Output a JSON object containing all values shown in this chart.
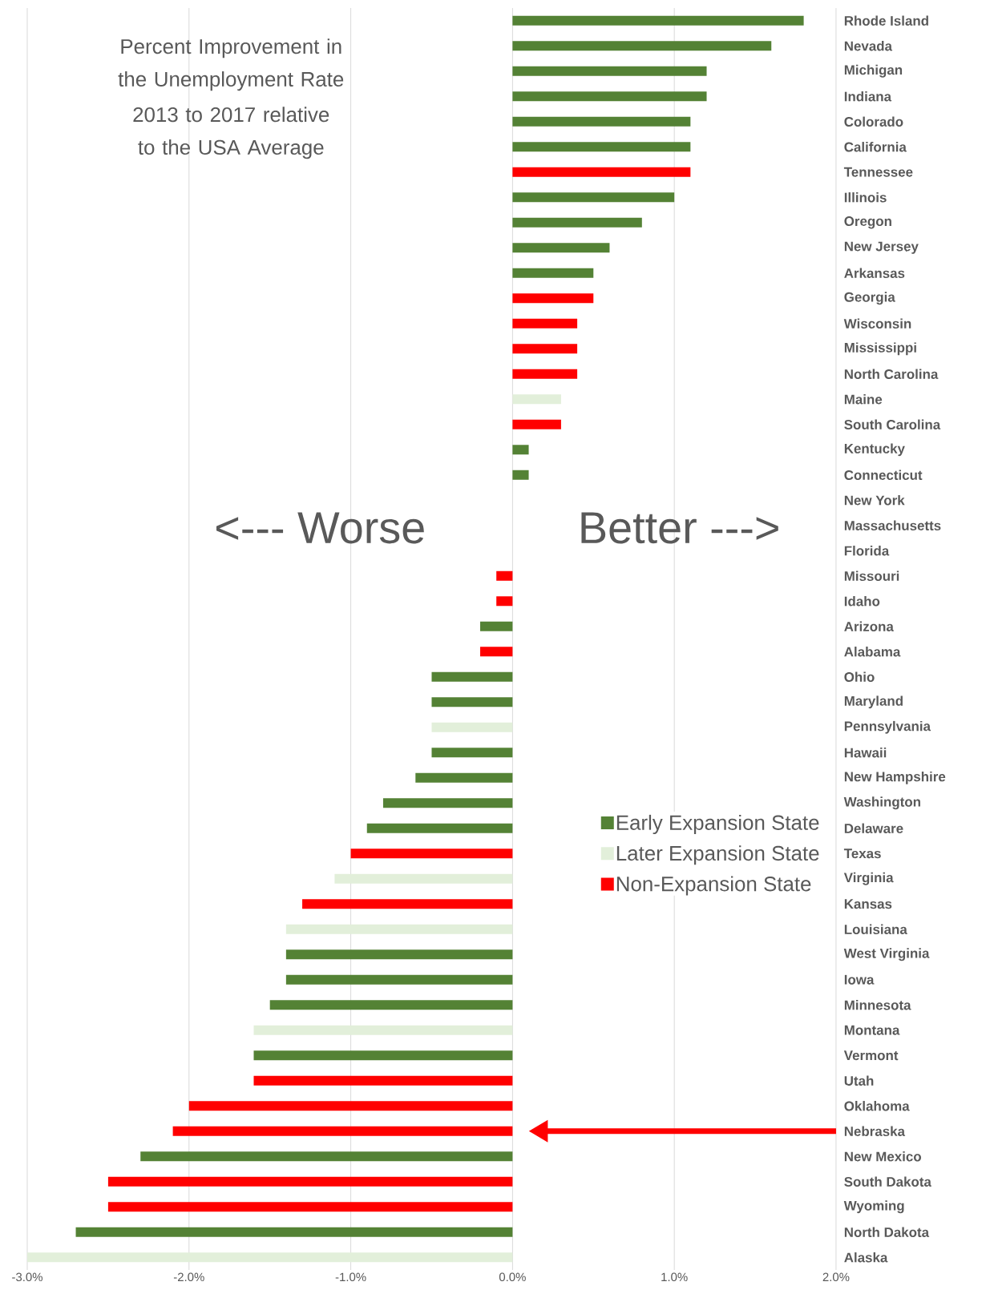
{
  "chart_data": {
    "type": "bar",
    "orientation": "horizontal",
    "title": "Percent Improvement in the Unemployment Rate",
    "subtitle": "2013 to 2017 relative to the USA Average",
    "categories": [
      "Rhode Island",
      "Nevada",
      "Michigan",
      "Indiana",
      "Colorado",
      "California",
      "Tennessee",
      "Illinois",
      "Oregon",
      "New Jersey",
      "Arkansas",
      "Georgia",
      "Wisconsin",
      "Mississippi",
      "North Carolina",
      "Maine",
      "South Carolina",
      "Kentucky",
      "Connecticut",
      "New York",
      "Massachusetts",
      "Florida",
      "Missouri",
      "Idaho",
      "Arizona",
      "Alabama",
      "Ohio",
      "Maryland",
      "Pennsylvania",
      "Hawaii",
      "New Hampshire",
      "Washington",
      "Delaware",
      "Texas",
      "Virginia",
      "Kansas",
      "Louisiana",
      "West Virginia",
      "Iowa",
      "Minnesota",
      "Montana",
      "Vermont",
      "Utah",
      "Oklahoma",
      "Nebraska",
      "New Mexico",
      "South Dakota",
      "Wyoming",
      "North Dakota",
      "Alaska"
    ],
    "series": [
      {
        "name": "Early Expansion State",
        "color": "#548235",
        "values": [
          1.8,
          1.6,
          1.2,
          1.2,
          1.1,
          1.1,
          null,
          1.0,
          0.8,
          0.6,
          0.5,
          null,
          null,
          null,
          null,
          null,
          null,
          0.1,
          0.1,
          0,
          0,
          null,
          null,
          null,
          -0.2,
          null,
          -0.5,
          -0.5,
          null,
          -0.5,
          -0.6,
          -0.8,
          -0.9,
          null,
          null,
          null,
          null,
          -1.4,
          -1.4,
          -1.5,
          null,
          -1.6,
          null,
          null,
          null,
          -2.3,
          null,
          null,
          -2.7,
          null
        ]
      },
      {
        "name": "Later Expansion State",
        "color": "#e2efda",
        "values": [
          null,
          null,
          null,
          null,
          null,
          null,
          null,
          null,
          null,
          null,
          null,
          null,
          null,
          null,
          null,
          0.3,
          null,
          null,
          null,
          null,
          null,
          null,
          null,
          null,
          null,
          null,
          null,
          null,
          -0.5,
          null,
          null,
          null,
          null,
          null,
          -1.1,
          null,
          -1.4,
          null,
          null,
          null,
          -1.6,
          null,
          null,
          null,
          null,
          null,
          null,
          null,
          null,
          -3.0
        ]
      },
      {
        "name": "Non-Expansion State",
        "color": "#ff0000",
        "values": [
          null,
          null,
          null,
          null,
          null,
          null,
          1.1,
          null,
          null,
          null,
          null,
          0.5,
          0.4,
          0.4,
          0.4,
          null,
          0.3,
          null,
          null,
          null,
          null,
          0,
          -0.1,
          -0.1,
          null,
          -0.2,
          null,
          null,
          null,
          null,
          null,
          null,
          null,
          -1.0,
          null,
          -1.3,
          null,
          null,
          null,
          null,
          null,
          null,
          -1.6,
          -2.0,
          -2.1,
          null,
          -2.5,
          -2.5,
          null,
          null
        ]
      }
    ],
    "xlim": [
      -3,
      2
    ],
    "xticks": [
      {
        "value": -3,
        "label": "-3.0%"
      },
      {
        "value": -2,
        "label": "-2.0%"
      },
      {
        "value": -1,
        "label": "-1.0%"
      },
      {
        "value": 0,
        "label": "0.0%"
      },
      {
        "value": 1,
        "label": "1.0%"
      },
      {
        "value": 2,
        "label": "2.0%"
      }
    ],
    "grid": "x",
    "legend": "right",
    "annotations": [
      "<--- Worse",
      "Better --->",
      {
        "y": "Nebraska"
      }
    ]
  }
}
